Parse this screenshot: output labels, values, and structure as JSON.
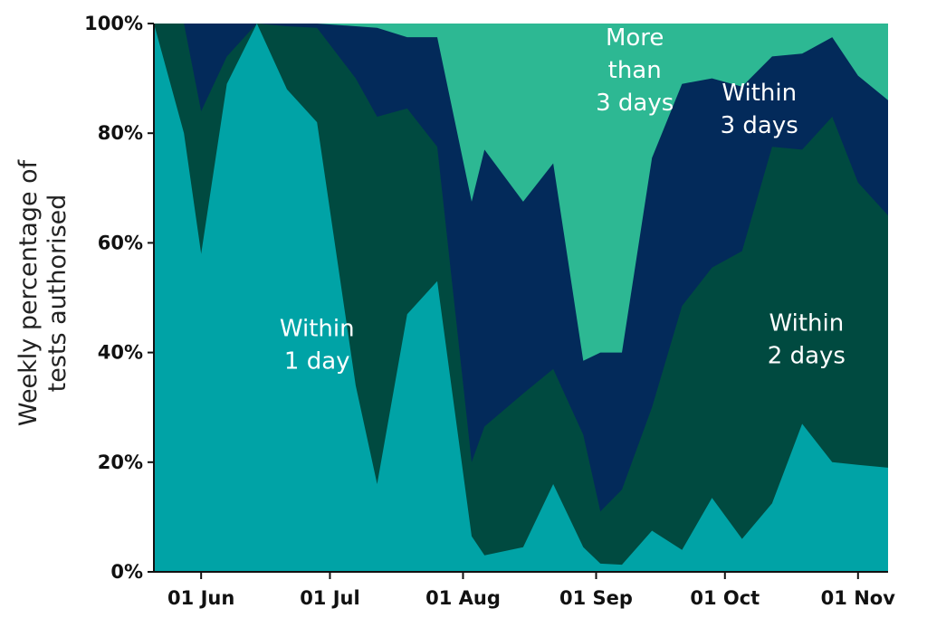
{
  "chart_data": {
    "type": "area",
    "stacked": true,
    "percent_scale": true,
    "ylabel_lines": [
      "Weekly percentage of",
      "tests authorised"
    ],
    "xlabel": "",
    "ylim": [
      0,
      100
    ],
    "yticks": [
      0,
      20,
      40,
      60,
      80,
      100
    ],
    "ytick_labels": [
      "0%",
      "20%",
      "40%",
      "60%",
      "80%",
      "100%"
    ],
    "xlim": [
      "2021-05-21",
      "2021-11-08"
    ],
    "xticks": [
      "2021-06-01",
      "2021-07-01",
      "2021-08-01",
      "2021-09-01",
      "2021-10-01",
      "2021-11-01"
    ],
    "xtick_labels": [
      "01 Jun",
      "01 Jul",
      "01 Aug",
      "01 Sep",
      "01 Oct",
      "01 Nov"
    ],
    "x": [
      "2021-05-21",
      "2021-05-28",
      "2021-06-01",
      "2021-06-07",
      "2021-06-14",
      "2021-06-21",
      "2021-06-28",
      "2021-07-07",
      "2021-07-12",
      "2021-07-19",
      "2021-07-26",
      "2021-08-03",
      "2021-08-06",
      "2021-08-15",
      "2021-08-22",
      "2021-08-29",
      "2021-09-02",
      "2021-09-07",
      "2021-09-14",
      "2021-09-21",
      "2021-09-28",
      "2021-10-05",
      "2021-10-12",
      "2021-10-19",
      "2021-10-26",
      "2021-11-01",
      "2021-11-08"
    ],
    "series": [
      {
        "name": "Within 1 day",
        "color": "#00a3a6",
        "values": [
          100,
          80,
          58,
          89,
          100,
          88,
          82,
          34,
          16,
          47,
          53,
          6.5,
          3,
          4.5,
          16,
          4.5,
          1.5,
          1.3,
          7.5,
          4,
          13.5,
          6,
          12.5,
          27,
          20,
          19.5,
          19
        ]
      },
      {
        "name": "Within 2 days",
        "color": "#004a40",
        "values": [
          100,
          100,
          84,
          94,
          100,
          99.5,
          99.2,
          90,
          83,
          84.5,
          77.5,
          20,
          26.5,
          32.5,
          37,
          25,
          11,
          15,
          30,
          48.5,
          55.5,
          58.5,
          77.5,
          77,
          83,
          71,
          65
        ]
      },
      {
        "name": "Within 3 days",
        "color": "#032a5a",
        "values": [
          100,
          100,
          100,
          100,
          100,
          100,
          100,
          99.5,
          99.2,
          97.5,
          97.5,
          67.5,
          77,
          67.5,
          74.5,
          38.5,
          40,
          40,
          75.5,
          89,
          90,
          88.5,
          94,
          94.5,
          97.5,
          90.5,
          86
        ]
      },
      {
        "name": "More than 3 days",
        "color": "#2db893",
        "values": [
          100,
          100,
          100,
          100,
          100,
          100,
          100,
          100,
          100,
          100,
          100,
          100,
          100,
          100,
          100,
          100,
          100,
          100,
          100,
          100,
          100,
          100,
          100,
          100,
          100,
          100,
          100
        ]
      }
    ],
    "annotations": [
      {
        "lines": [
          "Within",
          "1 day"
        ],
        "series": "Within 1 day"
      },
      {
        "lines": [
          "Within",
          "2 days"
        ],
        "series": "Within 2 days"
      },
      {
        "lines": [
          "Within",
          "3 days"
        ],
        "series": "Within 3 days"
      },
      {
        "lines": [
          "More",
          "than",
          "3 days"
        ],
        "series": "More than 3 days"
      }
    ],
    "grid": false,
    "legend": "none"
  }
}
